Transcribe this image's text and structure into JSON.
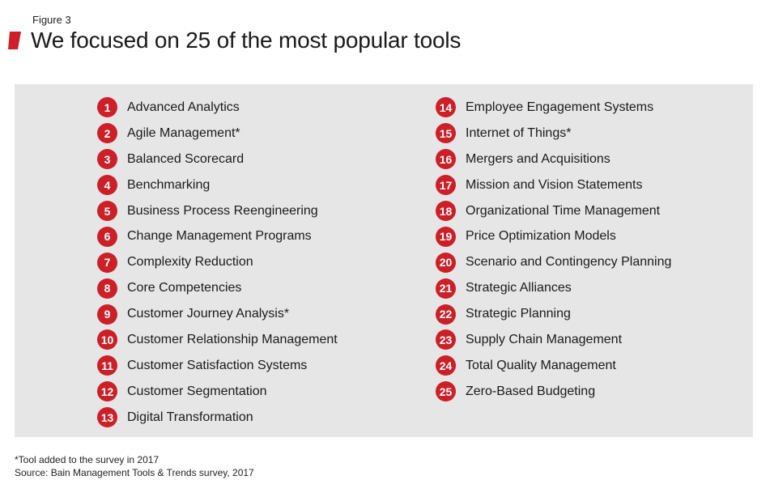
{
  "figure_label": "Figure 3",
  "title": "We focused on 25 of the most popular tools",
  "accent_color": "#cc1f27",
  "title_mark_icon": "red-parallelogram-icon",
  "tools_left": [
    {
      "num": "1",
      "label": "Advanced Analytics"
    },
    {
      "num": "2",
      "label": "Agile Management*"
    },
    {
      "num": "3",
      "label": "Balanced Scorecard"
    },
    {
      "num": "4",
      "label": "Benchmarking"
    },
    {
      "num": "5",
      "label": "Business Process Reengineering"
    },
    {
      "num": "6",
      "label": "Change Management Programs"
    },
    {
      "num": "7",
      "label": "Complexity Reduction"
    },
    {
      "num": "8",
      "label": "Core Competencies"
    },
    {
      "num": "9",
      "label": "Customer Journey Analysis*"
    },
    {
      "num": "10",
      "label": "Customer Relationship Management"
    },
    {
      "num": "11",
      "label": "Customer Satisfaction Systems"
    },
    {
      "num": "12",
      "label": "Customer Segmentation"
    },
    {
      "num": "13",
      "label": "Digital Transformation"
    }
  ],
  "tools_right": [
    {
      "num": "14",
      "label": "Employee Engagement Systems"
    },
    {
      "num": "15",
      "label": "Internet of Things*"
    },
    {
      "num": "16",
      "label": "Mergers and Acquisitions"
    },
    {
      "num": "17",
      "label": "Mission and Vision Statements"
    },
    {
      "num": "18",
      "label": "Organizational Time Management"
    },
    {
      "num": "19",
      "label": "Price Optimization Models"
    },
    {
      "num": "20",
      "label": "Scenario and Contingency Planning"
    },
    {
      "num": "21",
      "label": "Strategic Alliances"
    },
    {
      "num": "22",
      "label": "Strategic Planning"
    },
    {
      "num": "23",
      "label": "Supply Chain Management"
    },
    {
      "num": "24",
      "label": "Total Quality Management"
    },
    {
      "num": "25",
      "label": "Zero-Based Budgeting"
    }
  ],
  "footnotes": {
    "note": "*Tool added to the survey in 2017",
    "source": "Source: Bain Management Tools & Trends survey, 2017"
  }
}
